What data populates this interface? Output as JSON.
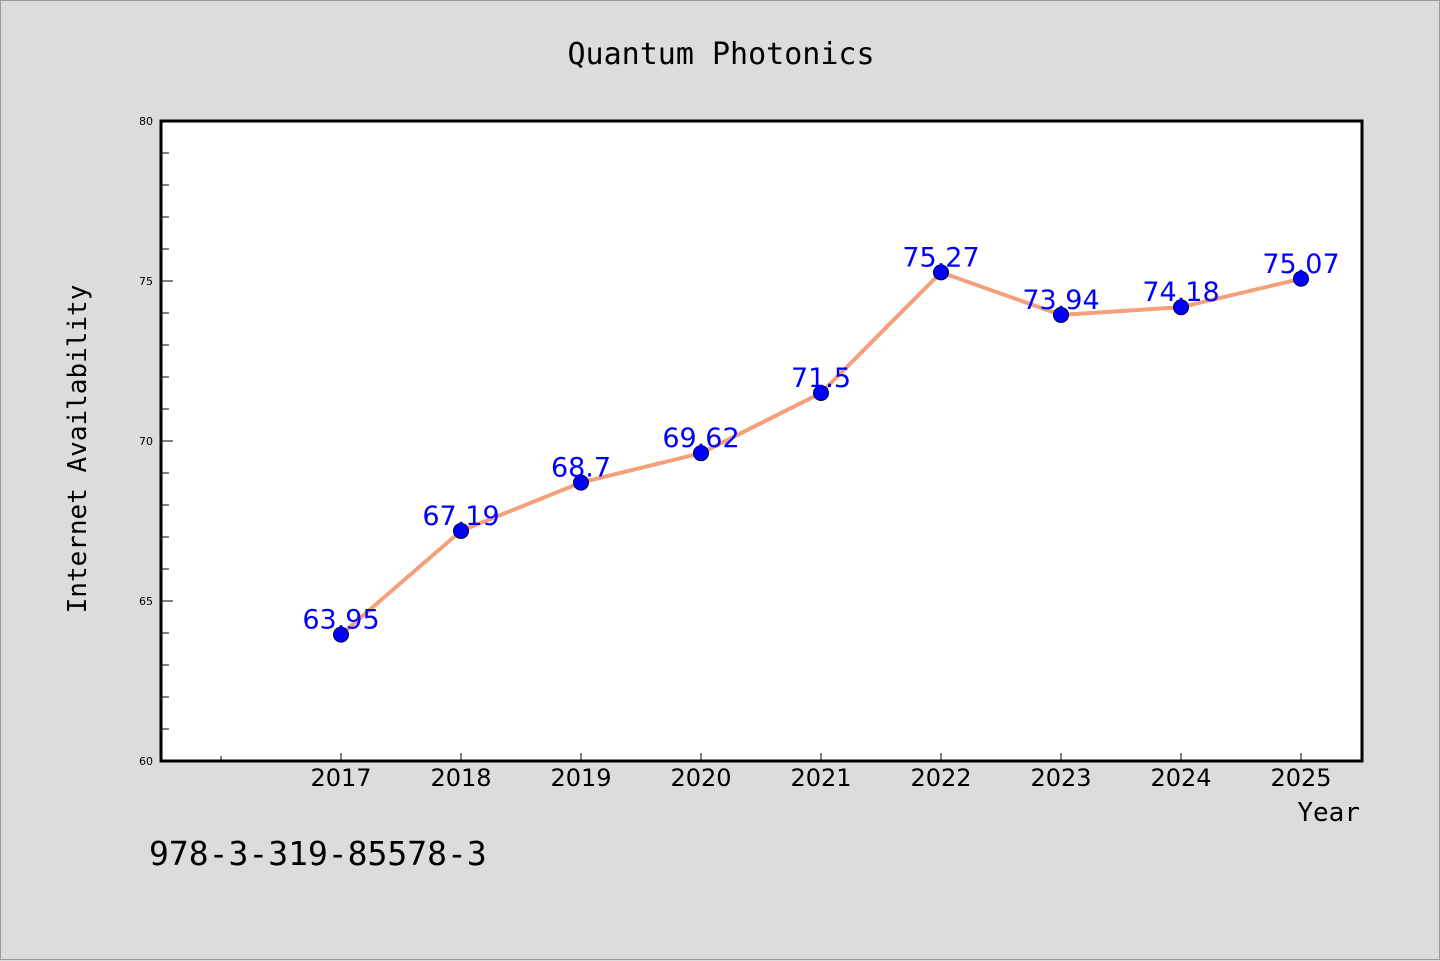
{
  "chart_data": {
    "type": "line",
    "title": "Quantum Photonics",
    "xlabel": "Year",
    "ylabel": "Internet Availability",
    "categories": [
      "2017",
      "2018",
      "2019",
      "2020",
      "2021",
      "2022",
      "2023",
      "2024",
      "2025"
    ],
    "series": [
      {
        "values": [
          63.95,
          67.19,
          68.7,
          69.62,
          71.5,
          75.27,
          73.94,
          74.18,
          75.07
        ],
        "line_color": "#f4a07a",
        "marker_color": "#0000ff"
      }
    ],
    "data_labels": [
      "63.95",
      "67.19",
      "68.7",
      "69.62",
      "71.5",
      "75.27",
      "73.94",
      "74.18",
      "75.07"
    ],
    "ylim": [
      60,
      80
    ],
    "yticks": [
      "60",
      "65",
      "70",
      "75",
      "80"
    ],
    "grid": false,
    "legend": "none"
  },
  "footer": {
    "isbn": "978-3-319-85578-3"
  }
}
